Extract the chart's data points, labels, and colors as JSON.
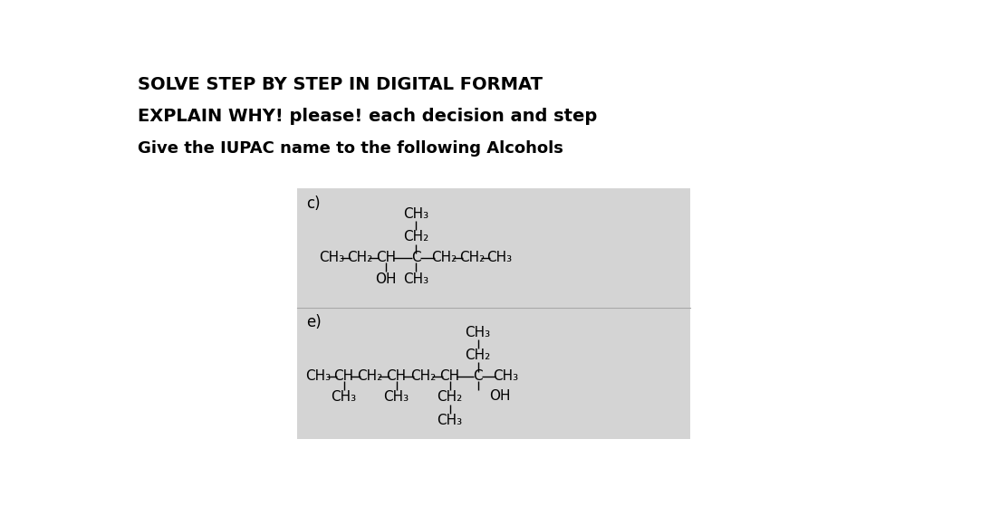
{
  "title1": "SOLVE STEP BY STEP IN DIGITAL FORMAT",
  "title2": "EXPLAIN WHY! please! each decision and step",
  "title3": "Give the IUPAC name to the following Alcohols",
  "title1_fontsize": 14,
  "title2_fontsize": 14,
  "title3_fontsize": 13,
  "bg_color": "#ffffff",
  "box_color": "#d4d4d4",
  "text_color": "#000000",
  "chem_fontsize": 11,
  "label_fontsize": 12
}
